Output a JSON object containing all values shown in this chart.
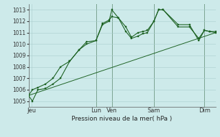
{
  "xlabel": "Pression niveau de la mer( hPa )",
  "background_color": "#cdeaea",
  "grid_color": "#a8cccc",
  "line_color": "#1a6020",
  "ylim": [
    1004.5,
    1013.5
  ],
  "yticks": [
    1005,
    1006,
    1007,
    1008,
    1009,
    1010,
    1011,
    1012,
    1013
  ],
  "xlim": [
    0,
    1.0
  ],
  "day_labels": [
    "Jeu",
    "Lun",
    "Ven",
    "Sam",
    "Dim"
  ],
  "day_positions": [
    0.015,
    0.36,
    0.445,
    0.67,
    0.94
  ],
  "vline_positions": [
    0.36,
    0.445,
    0.67,
    0.94
  ],
  "series1_x": [
    0.0,
    0.02,
    0.05,
    0.09,
    0.13,
    0.17,
    0.22,
    0.27,
    0.31,
    0.36,
    0.395,
    0.43,
    0.445,
    0.48,
    0.52,
    0.55,
    0.585,
    0.61,
    0.635,
    0.67,
    0.695,
    0.72,
    0.8,
    0.86,
    0.91,
    0.94,
    0.97,
    1.0
  ],
  "series1_y": [
    1005.5,
    1005.0,
    1006.0,
    1006.1,
    1006.5,
    1007.0,
    1008.5,
    1009.5,
    1010.2,
    1010.3,
    1011.7,
    1012.0,
    1013.0,
    1012.3,
    1011.1,
    1010.5,
    1010.7,
    1010.9,
    1011.0,
    1012.0,
    1013.0,
    1013.0,
    1011.7,
    1011.7,
    1010.3,
    1011.2,
    1011.1,
    1011.0
  ],
  "series2_x": [
    0.0,
    0.02,
    0.05,
    0.09,
    0.13,
    0.17,
    0.22,
    0.27,
    0.31,
    0.36,
    0.395,
    0.43,
    0.445,
    0.48,
    0.52,
    0.55,
    0.585,
    0.61,
    0.635,
    0.67,
    0.695,
    0.72,
    0.8,
    0.86,
    0.91,
    0.94,
    0.97,
    1.0
  ],
  "series2_y": [
    1005.5,
    1006.0,
    1006.2,
    1006.5,
    1007.0,
    1008.0,
    1008.5,
    1009.5,
    1010.0,
    1010.3,
    1011.8,
    1012.1,
    1012.4,
    1012.3,
    1011.5,
    1010.6,
    1011.0,
    1011.1,
    1011.2,
    1012.0,
    1013.0,
    1013.0,
    1011.5,
    1011.5,
    1010.5,
    1011.2,
    1011.1,
    1011.1
  ],
  "series3_x": [
    0.0,
    1.0
  ],
  "series3_y": [
    1005.5,
    1011.0
  ]
}
